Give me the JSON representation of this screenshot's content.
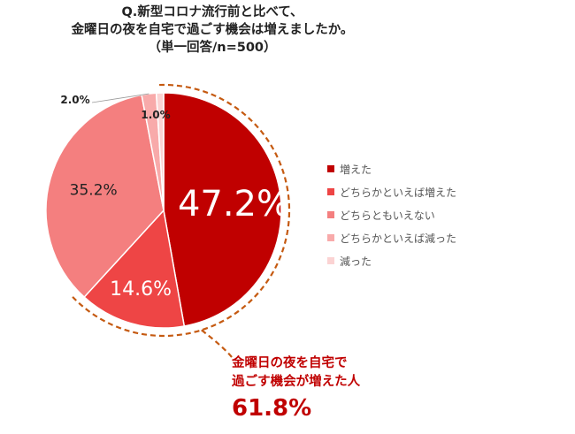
{
  "title": {
    "line1": "Q.新型コロナ流行前と比べて、",
    "line2": "金曜日の夜を自宅で過ごす機会は増えましたか。",
    "line3": "（単一回答/n=500）"
  },
  "chart_data": {
    "type": "pie",
    "title": "Q.新型コロナ流行前と比べて、金曜日の夜を自宅で過ごす機会は増えましたか。（単一回答/n=500）",
    "slices": [
      {
        "name": "増えた",
        "value": 47.2,
        "label": "47.2%",
        "color": "#c00000",
        "label_color": "#ffffff"
      },
      {
        "name": "どちらかといえば増えた",
        "value": 14.6,
        "label": "14.6%",
        "color": "#ee4545",
        "label_color": "#ffffff"
      },
      {
        "name": "どちらともいえない",
        "value": 35.2,
        "label": "35.2%",
        "color": "#f47f7f",
        "label_color": "#222222"
      },
      {
        "name": "どちらかといえば減った",
        "value": 2.0,
        "label": "2.0%",
        "color": "#f8aaaa",
        "label_color": "#222222"
      },
      {
        "name": "減った",
        "value": 1.0,
        "label": "1.0%",
        "color": "#fbd3d3",
        "label_color": "#222222"
      }
    ],
    "legend_position": "right",
    "start_angle": "12 o'clock, clockwise"
  },
  "callout": {
    "line1": "金曜日の夜を自宅で",
    "line2": "過ごす機会が増えた人",
    "value": "61.8%",
    "color": "#c00000",
    "arc_color": "#c55a11"
  }
}
